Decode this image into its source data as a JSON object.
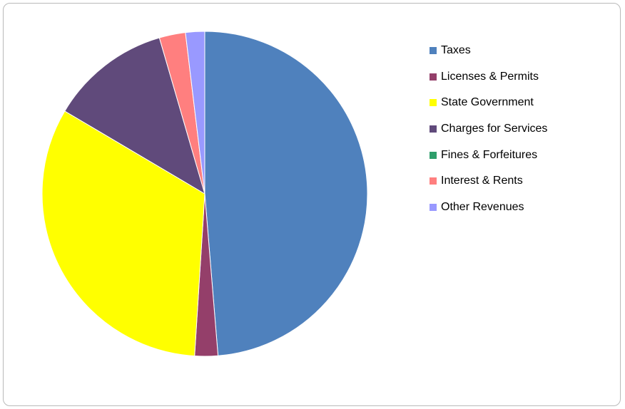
{
  "chart_data": {
    "type": "pie",
    "start_angle_deg": 0,
    "direction": "clockwise",
    "slices": [
      {
        "label": "Taxes",
        "value": 48.7,
        "color": "#4F81BD"
      },
      {
        "label": "Licenses & Permits",
        "value": 2.3,
        "color": "#943F6A"
      },
      {
        "label": "State Government",
        "value": 32.5,
        "color": "#FFFF00"
      },
      {
        "label": "Charges for Services",
        "value": 12.0,
        "color": "#604A7B"
      },
      {
        "label": "Fines & Forfeitures",
        "value": 0.0,
        "color": "#2E9E6B"
      },
      {
        "label": "Interest & Rents",
        "value": 2.6,
        "color": "#FF7F7F"
      },
      {
        "label": "Other Revenues",
        "value": 1.9,
        "color": "#9999FF"
      }
    ],
    "legend_position": "right"
  }
}
